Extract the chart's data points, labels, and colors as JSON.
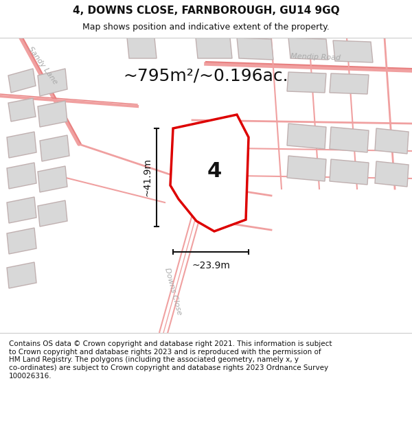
{
  "title": "4, DOWNS CLOSE, FARNBOROUGH, GU14 9GQ",
  "subtitle": "Map shows position and indicative extent of the property.",
  "area_label": "~795m²/~0.196ac.",
  "dim_height": "~41.9m",
  "dim_width": "~23.9m",
  "property_number": "4",
  "footer": "Contains OS data © Crown copyright and database right 2021. This information is subject\nto Crown copyright and database rights 2023 and is reproduced with the permission of\nHM Land Registry. The polygons (including the associated geometry, namely x, y\nco-ordinates) are subject to Crown copyright and database rights 2023 Ordnance Survey\n100026316.",
  "map_bg": "#f5f5f5",
  "title_bg": "#ffffff",
  "footer_bg": "#ffffff",
  "road_color_light": "#f0a0a0",
  "road_color_mid": "#e88080",
  "building_fill": "#d8d8d8",
  "building_stroke": "#c0b0b0",
  "property_fill": "#ffffff",
  "property_stroke": "#dd0000",
  "dim_color": "#111111",
  "text_color": "#111111",
  "road_label_color": "#aaaaaa",
  "title_fontsize": 11,
  "subtitle_fontsize": 9,
  "area_fontsize": 18,
  "dim_fontsize": 10,
  "footer_fontsize": 7.5,
  "prop_num_fontsize": 22
}
